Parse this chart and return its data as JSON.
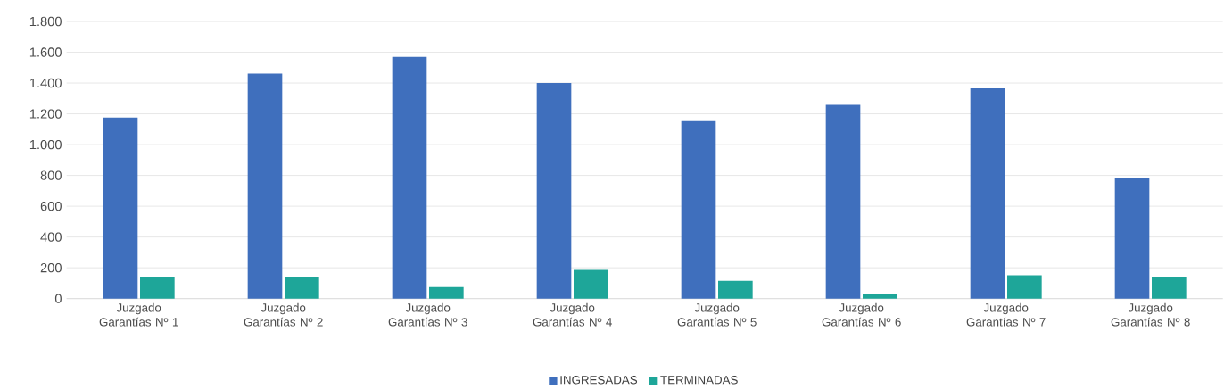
{
  "chart_data": {
    "type": "bar",
    "categories": [
      "Juzgado Garantías Nº 1",
      "Juzgado Garantías Nº 2",
      "Juzgado Garantías Nº 3",
      "Juzgado Garantías Nº 4",
      "Juzgado Garantías Nº 5",
      "Juzgado Garantías Nº 6",
      "Juzgado Garantías Nº 7",
      "Juzgado Garantías Nº 8"
    ],
    "series": [
      {
        "name": "INGRESADAS",
        "color": "#3f6fbd",
        "values": [
          1175,
          1461,
          1569,
          1400,
          1152,
          1258,
          1365,
          785
        ]
      },
      {
        "name": "TERMINADAS",
        "color": "#1ea699",
        "values": [
          137,
          142,
          75,
          186,
          116,
          33,
          152,
          142
        ]
      }
    ],
    "ylim": [
      0,
      1800
    ],
    "yticks": [
      {
        "value": 0,
        "label": "0"
      },
      {
        "value": 200,
        "label": "200"
      },
      {
        "value": 400,
        "label": "400"
      },
      {
        "value": 600,
        "label": "600"
      },
      {
        "value": 800,
        "label": "800"
      },
      {
        "value": 1000,
        "label": "1.000"
      },
      {
        "value": 1200,
        "label": "1.200"
      },
      {
        "value": 1400,
        "label": "1.400"
      },
      {
        "value": 1600,
        "label": "1.600"
      },
      {
        "value": 1800,
        "label": "1.800"
      }
    ],
    "grid": "y",
    "legend": "bottom"
  }
}
